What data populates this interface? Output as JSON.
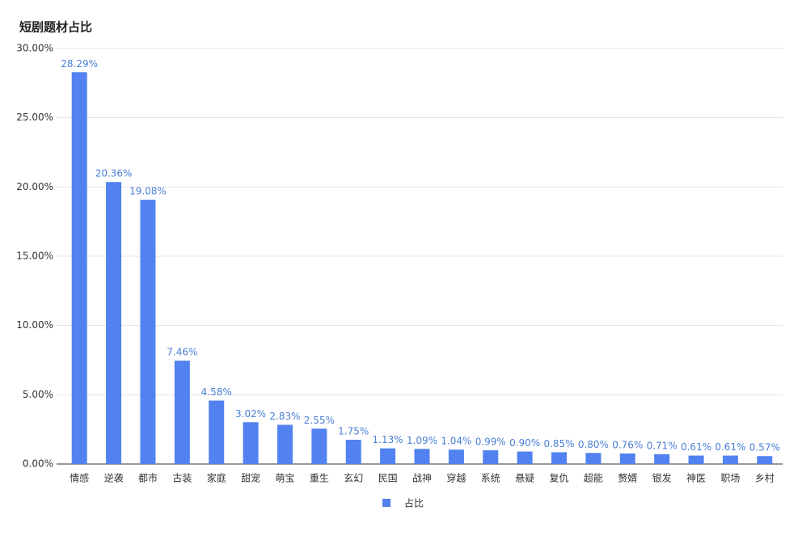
{
  "chart_data": {
    "type": "bar",
    "title": "短剧题材占比",
    "categories": [
      "情感",
      "逆袭",
      "都市",
      "古装",
      "家庭",
      "甜宠",
      "萌宝",
      "重生",
      "玄幻",
      "民国",
      "战神",
      "穿越",
      "系统",
      "悬疑",
      "复仇",
      "超能",
      "赘婿",
      "银发",
      "神医",
      "职场",
      "乡村"
    ],
    "series": [
      {
        "name": "占比",
        "color": "#5282f0",
        "values": [
          28.29,
          20.36,
          19.08,
          7.46,
          4.58,
          3.02,
          2.83,
          2.55,
          1.75,
          1.13,
          1.09,
          1.04,
          0.99,
          0.9,
          0.85,
          0.8,
          0.76,
          0.71,
          0.61,
          0.61,
          0.57
        ],
        "value_labels": [
          "28.29%",
          "20.36%",
          "19.08%",
          "7.46%",
          "4.58%",
          "3.02%",
          "2.83%",
          "2.55%",
          "1.75%",
          "1.13%",
          "1.09%",
          "1.04%",
          "0.99%",
          "0.90%",
          "0.85%",
          "0.80%",
          "0.76%",
          "0.71%",
          "0.61%",
          "0.61%",
          "0.57%"
        ]
      }
    ],
    "ylim": [
      0,
      30
    ],
    "yticks": [
      {
        "value": 0,
        "label": "0.00%"
      },
      {
        "value": 5,
        "label": "5.00%"
      },
      {
        "value": 10,
        "label": "10.00%"
      },
      {
        "value": 15,
        "label": "15.00%"
      },
      {
        "value": 20,
        "label": "20.00%"
      },
      {
        "value": 25,
        "label": "25.00%"
      },
      {
        "value": 30,
        "label": "30.00%"
      }
    ],
    "grid": true,
    "legend": "bottom"
  }
}
